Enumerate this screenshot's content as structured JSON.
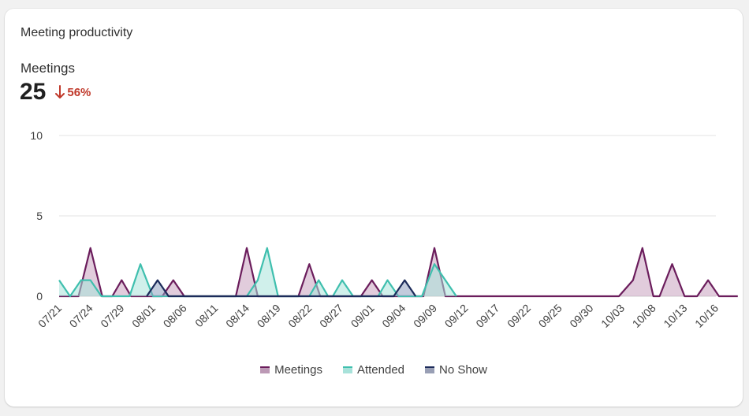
{
  "card": {
    "title": "Meeting productivity",
    "metric_label": "Meetings",
    "metric_value": "25",
    "metric_change": "56%",
    "metric_direction": "down",
    "change_color": "#c0392b"
  },
  "chart_data": {
    "type": "area",
    "title": "",
    "xlabel": "",
    "ylabel": "",
    "ylim": [
      0,
      10
    ],
    "yticks": [
      0,
      5,
      10
    ],
    "grid": true,
    "legend_position": "bottom-center",
    "x_tick_labels": [
      "07/21",
      "07/24",
      "07/29",
      "08/01",
      "08/06",
      "08/11",
      "08/14",
      "08/19",
      "08/22",
      "08/27",
      "09/01",
      "09/04",
      "09/09",
      "09/12",
      "09/17",
      "09/22",
      "09/25",
      "09/30",
      "10/03",
      "10/08",
      "10/13",
      "10/16"
    ],
    "series": [
      {
        "name": "Meetings",
        "color": "#6b1d5c",
        "fill": "#c9a3c0",
        "points": [
          [
            0,
            0
          ],
          [
            0.62,
            0
          ],
          [
            1,
            3
          ],
          [
            1.38,
            0
          ],
          [
            1.7,
            0
          ],
          [
            2,
            1
          ],
          [
            2.3,
            0
          ],
          [
            2.88,
            0
          ],
          [
            3,
            0
          ],
          [
            3.3,
            0
          ],
          [
            3.65,
            1
          ],
          [
            4,
            0
          ],
          [
            5.65,
            0
          ],
          [
            6,
            3
          ],
          [
            6.35,
            0
          ],
          [
            7.65,
            0
          ],
          [
            8,
            2
          ],
          [
            8.35,
            0
          ],
          [
            9.65,
            0
          ],
          [
            10,
            1
          ],
          [
            10.35,
            0
          ],
          [
            11.65,
            0
          ],
          [
            12,
            3
          ],
          [
            12.35,
            0
          ],
          [
            17.9,
            0
          ],
          [
            18.35,
            1
          ],
          [
            18.65,
            3
          ],
          [
            19,
            0
          ],
          [
            19.2,
            0
          ],
          [
            19.6,
            2
          ],
          [
            20,
            0
          ],
          [
            20.4,
            0
          ],
          [
            20.75,
            1
          ],
          [
            21.1,
            0
          ],
          [
            21.7,
            0
          ]
        ]
      },
      {
        "name": "Attended",
        "color": "#3fbfae",
        "fill": "#a9e3da",
        "points": [
          [
            0,
            1
          ],
          [
            0.35,
            0
          ],
          [
            0.7,
            1
          ],
          [
            1,
            1
          ],
          [
            1.35,
            0
          ],
          [
            2.25,
            0
          ],
          [
            2.6,
            2
          ],
          [
            3,
            0
          ],
          [
            6,
            0
          ],
          [
            6.35,
            1
          ],
          [
            6.65,
            3
          ],
          [
            7,
            0
          ],
          [
            8,
            0
          ],
          [
            8.3,
            1
          ],
          [
            8.6,
            0
          ],
          [
            8.75,
            0
          ],
          [
            9.05,
            1
          ],
          [
            9.4,
            0
          ],
          [
            10.2,
            0
          ],
          [
            10.5,
            1
          ],
          [
            10.85,
            0
          ],
          [
            11.6,
            0
          ],
          [
            12,
            2
          ],
          [
            12.7,
            0
          ]
        ]
      },
      {
        "name": "No Show",
        "color": "#1c2b5a",
        "fill": "#8fa0c0",
        "points": [
          [
            2.8,
            0
          ],
          [
            3.15,
            1
          ],
          [
            3.5,
            0
          ],
          [
            10.7,
            0
          ],
          [
            11.05,
            1
          ],
          [
            11.4,
            0
          ]
        ]
      }
    ]
  }
}
